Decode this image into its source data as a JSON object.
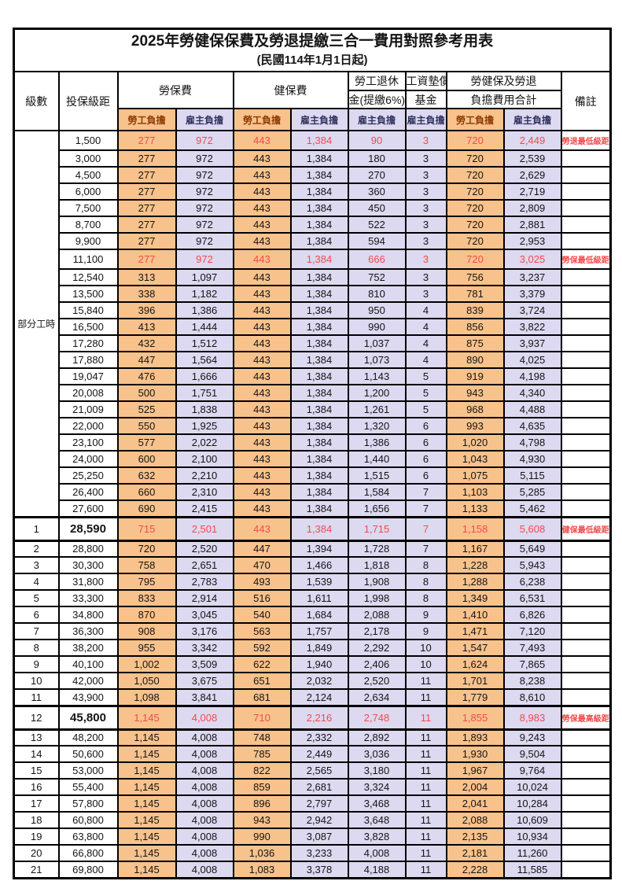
{
  "title": "2025年勞健保保費及勞退提繳三合一費用對照參考用表",
  "subtitle": "(民國114年1月1日起)",
  "header": {
    "level": "級數",
    "bracket": "投保級距",
    "labor_insurance": "勞保費",
    "health_insurance": "健保費",
    "pension_line1": "勞工退休",
    "pension_line2": "金(提繳6%)",
    "wage_fund_line1": "工資墊償",
    "wage_fund_line2": "基金",
    "total_line1": "勞健保及勞退",
    "total_line2": "負擔費用合計",
    "remarks": "備註",
    "worker_share": "勞工負擔",
    "employer_share": "雇主負擔"
  },
  "part_time_label": "部分工時",
  "colors": {
    "worker_column_bg": "#f8c28c",
    "employer_column_bg": "#dcd9f0",
    "highlight_text": "#f24b4b",
    "worker_header_text": "#8c3a00",
    "employer_header_text": "#31315e",
    "border": "#000000"
  },
  "rows": [
    {
      "level": "",
      "bracket": "1,500",
      "v": [
        "277",
        "972",
        "443",
        "1,384",
        "90",
        "3",
        "720",
        "2,449"
      ],
      "remark": "勞退最低級距",
      "red": true,
      "big": false
    },
    {
      "level": "",
      "bracket": "3,000",
      "v": [
        "277",
        "972",
        "443",
        "1,384",
        "180",
        "3",
        "720",
        "2,539"
      ],
      "remark": "",
      "red": false,
      "big": false
    },
    {
      "level": "",
      "bracket": "4,500",
      "v": [
        "277",
        "972",
        "443",
        "1,384",
        "270",
        "3",
        "720",
        "2,629"
      ],
      "remark": "",
      "red": false,
      "big": false
    },
    {
      "level": "",
      "bracket": "6,000",
      "v": [
        "277",
        "972",
        "443",
        "1,384",
        "360",
        "3",
        "720",
        "2,719"
      ],
      "remark": "",
      "red": false,
      "big": false
    },
    {
      "level": "",
      "bracket": "7,500",
      "v": [
        "277",
        "972",
        "443",
        "1,384",
        "450",
        "3",
        "720",
        "2,809"
      ],
      "remark": "",
      "red": false,
      "big": false
    },
    {
      "level": "",
      "bracket": "8,700",
      "v": [
        "277",
        "972",
        "443",
        "1,384",
        "522",
        "3",
        "720",
        "2,881"
      ],
      "remark": "",
      "red": false,
      "big": false
    },
    {
      "level": "",
      "bracket": "9,900",
      "v": [
        "277",
        "972",
        "443",
        "1,384",
        "594",
        "3",
        "720",
        "2,953"
      ],
      "remark": "",
      "red": false,
      "big": false
    },
    {
      "level": "",
      "bracket": "11,100",
      "v": [
        "277",
        "972",
        "443",
        "1,384",
        "666",
        "3",
        "720",
        "3,025"
      ],
      "remark": "勞保最低級距",
      "red": true,
      "big": false
    },
    {
      "level": "",
      "bracket": "12,540",
      "v": [
        "313",
        "1,097",
        "443",
        "1,384",
        "752",
        "3",
        "756",
        "3,237"
      ],
      "remark": "",
      "red": false,
      "big": false
    },
    {
      "level": "",
      "bracket": "13,500",
      "v": [
        "338",
        "1,182",
        "443",
        "1,384",
        "810",
        "3",
        "781",
        "3,379"
      ],
      "remark": "",
      "red": false,
      "big": false
    },
    {
      "level": "",
      "bracket": "15,840",
      "v": [
        "396",
        "1,386",
        "443",
        "1,384",
        "950",
        "4",
        "839",
        "3,724"
      ],
      "remark": "",
      "red": false,
      "big": false
    },
    {
      "level": "",
      "bracket": "16,500",
      "v": [
        "413",
        "1,444",
        "443",
        "1,384",
        "990",
        "4",
        "856",
        "3,822"
      ],
      "remark": "",
      "red": false,
      "big": false
    },
    {
      "level": "",
      "bracket": "17,280",
      "v": [
        "432",
        "1,512",
        "443",
        "1,384",
        "1,037",
        "4",
        "875",
        "3,937"
      ],
      "remark": "",
      "red": false,
      "big": false
    },
    {
      "level": "",
      "bracket": "17,880",
      "v": [
        "447",
        "1,564",
        "443",
        "1,384",
        "1,073",
        "4",
        "890",
        "4,025"
      ],
      "remark": "",
      "red": false,
      "big": false
    },
    {
      "level": "",
      "bracket": "19,047",
      "v": [
        "476",
        "1,666",
        "443",
        "1,384",
        "1,143",
        "5",
        "919",
        "4,198"
      ],
      "remark": "",
      "red": false,
      "big": false
    },
    {
      "level": "",
      "bracket": "20,008",
      "v": [
        "500",
        "1,751",
        "443",
        "1,384",
        "1,200",
        "5",
        "943",
        "4,340"
      ],
      "remark": "",
      "red": false,
      "big": false
    },
    {
      "level": "",
      "bracket": "21,009",
      "v": [
        "525",
        "1,838",
        "443",
        "1,384",
        "1,261",
        "5",
        "968",
        "4,488"
      ],
      "remark": "",
      "red": false,
      "big": false
    },
    {
      "level": "",
      "bracket": "22,000",
      "v": [
        "550",
        "1,925",
        "443",
        "1,384",
        "1,320",
        "6",
        "993",
        "4,635"
      ],
      "remark": "",
      "red": false,
      "big": false
    },
    {
      "level": "",
      "bracket": "23,100",
      "v": [
        "577",
        "2,022",
        "443",
        "1,384",
        "1,386",
        "6",
        "1,020",
        "4,798"
      ],
      "remark": "",
      "red": false,
      "big": false
    },
    {
      "level": "",
      "bracket": "24,000",
      "v": [
        "600",
        "2,100",
        "443",
        "1,384",
        "1,440",
        "6",
        "1,043",
        "4,930"
      ],
      "remark": "",
      "red": false,
      "big": false
    },
    {
      "level": "",
      "bracket": "25,250",
      "v": [
        "632",
        "2,210",
        "443",
        "1,384",
        "1,515",
        "6",
        "1,075",
        "5,115"
      ],
      "remark": "",
      "red": false,
      "big": false
    },
    {
      "level": "",
      "bracket": "26,400",
      "v": [
        "660",
        "2,310",
        "443",
        "1,384",
        "1,584",
        "7",
        "1,103",
        "5,285"
      ],
      "remark": "",
      "red": false,
      "big": false
    },
    {
      "level": "",
      "bracket": "27,600",
      "v": [
        "690",
        "2,415",
        "443",
        "1,384",
        "1,656",
        "7",
        "1,133",
        "5,462"
      ],
      "remark": "",
      "red": false,
      "big": false
    },
    {
      "level": "1",
      "bracket": "28,590",
      "v": [
        "715",
        "2,501",
        "443",
        "1,384",
        "1,715",
        "7",
        "1,158",
        "5,608"
      ],
      "remark": "健保最低級距",
      "red": true,
      "big": true
    },
    {
      "level": "2",
      "bracket": "28,800",
      "v": [
        "720",
        "2,520",
        "447",
        "1,394",
        "1,728",
        "7",
        "1,167",
        "5,649"
      ],
      "remark": "",
      "red": false,
      "big": false
    },
    {
      "level": "3",
      "bracket": "30,300",
      "v": [
        "758",
        "2,651",
        "470",
        "1,466",
        "1,818",
        "8",
        "1,228",
        "5,943"
      ],
      "remark": "",
      "red": false,
      "big": false
    },
    {
      "level": "4",
      "bracket": "31,800",
      "v": [
        "795",
        "2,783",
        "493",
        "1,539",
        "1,908",
        "8",
        "1,288",
        "6,238"
      ],
      "remark": "",
      "red": false,
      "big": false
    },
    {
      "level": "5",
      "bracket": "33,300",
      "v": [
        "833",
        "2,914",
        "516",
        "1,611",
        "1,998",
        "8",
        "1,349",
        "6,531"
      ],
      "remark": "",
      "red": false,
      "big": false
    },
    {
      "level": "6",
      "bracket": "34,800",
      "v": [
        "870",
        "3,045",
        "540",
        "1,684",
        "2,088",
        "9",
        "1,410",
        "6,826"
      ],
      "remark": "",
      "red": false,
      "big": false
    },
    {
      "level": "7",
      "bracket": "36,300",
      "v": [
        "908",
        "3,176",
        "563",
        "1,757",
        "2,178",
        "9",
        "1,471",
        "7,120"
      ],
      "remark": "",
      "red": false,
      "big": false
    },
    {
      "level": "8",
      "bracket": "38,200",
      "v": [
        "955",
        "3,342",
        "592",
        "1,849",
        "2,292",
        "10",
        "1,547",
        "7,493"
      ],
      "remark": "",
      "red": false,
      "big": false
    },
    {
      "level": "9",
      "bracket": "40,100",
      "v": [
        "1,002",
        "3,509",
        "622",
        "1,940",
        "2,406",
        "10",
        "1,624",
        "7,865"
      ],
      "remark": "",
      "red": false,
      "big": false
    },
    {
      "level": "10",
      "bracket": "42,000",
      "v": [
        "1,050",
        "3,675",
        "651",
        "2,032",
        "2,520",
        "11",
        "1,701",
        "8,238"
      ],
      "remark": "",
      "red": false,
      "big": false
    },
    {
      "level": "11",
      "bracket": "43,900",
      "v": [
        "1,098",
        "3,841",
        "681",
        "2,124",
        "2,634",
        "11",
        "1,779",
        "8,610"
      ],
      "remark": "",
      "red": false,
      "big": false
    },
    {
      "level": "12",
      "bracket": "45,800",
      "v": [
        "1,145",
        "4,008",
        "710",
        "2,216",
        "2,748",
        "11",
        "1,855",
        "8,983"
      ],
      "remark": "勞保最高級距",
      "red": true,
      "big": true
    },
    {
      "level": "13",
      "bracket": "48,200",
      "v": [
        "1,145",
        "4,008",
        "748",
        "2,332",
        "2,892",
        "11",
        "1,893",
        "9,243"
      ],
      "remark": "",
      "red": false,
      "big": false
    },
    {
      "level": "14",
      "bracket": "50,600",
      "v": [
        "1,145",
        "4,008",
        "785",
        "2,449",
        "3,036",
        "11",
        "1,930",
        "9,504"
      ],
      "remark": "",
      "red": false,
      "big": false
    },
    {
      "level": "15",
      "bracket": "53,000",
      "v": [
        "1,145",
        "4,008",
        "822",
        "2,565",
        "3,180",
        "11",
        "1,967",
        "9,764"
      ],
      "remark": "",
      "red": false,
      "big": false
    },
    {
      "level": "16",
      "bracket": "55,400",
      "v": [
        "1,145",
        "4,008",
        "859",
        "2,681",
        "3,324",
        "11",
        "2,004",
        "10,024"
      ],
      "remark": "",
      "red": false,
      "big": false
    },
    {
      "level": "17",
      "bracket": "57,800",
      "v": [
        "1,145",
        "4,008",
        "896",
        "2,797",
        "3,468",
        "11",
        "2,041",
        "10,284"
      ],
      "remark": "",
      "red": false,
      "big": false
    },
    {
      "level": "18",
      "bracket": "60,800",
      "v": [
        "1,145",
        "4,008",
        "943",
        "2,942",
        "3,648",
        "11",
        "2,088",
        "10,609"
      ],
      "remark": "",
      "red": false,
      "big": false
    },
    {
      "level": "19",
      "bracket": "63,800",
      "v": [
        "1,145",
        "4,008",
        "990",
        "3,087",
        "3,828",
        "11",
        "2,135",
        "10,934"
      ],
      "remark": "",
      "red": false,
      "big": false
    },
    {
      "level": "20",
      "bracket": "66,800",
      "v": [
        "1,145",
        "4,008",
        "1,036",
        "3,233",
        "4,008",
        "11",
        "2,181",
        "11,260"
      ],
      "remark": "",
      "red": false,
      "big": false
    },
    {
      "level": "21",
      "bracket": "69,800",
      "v": [
        "1,145",
        "4,008",
        "1,083",
        "3,378",
        "4,188",
        "11",
        "2,228",
        "11,585"
      ],
      "remark": "",
      "red": false,
      "big": false
    }
  ]
}
